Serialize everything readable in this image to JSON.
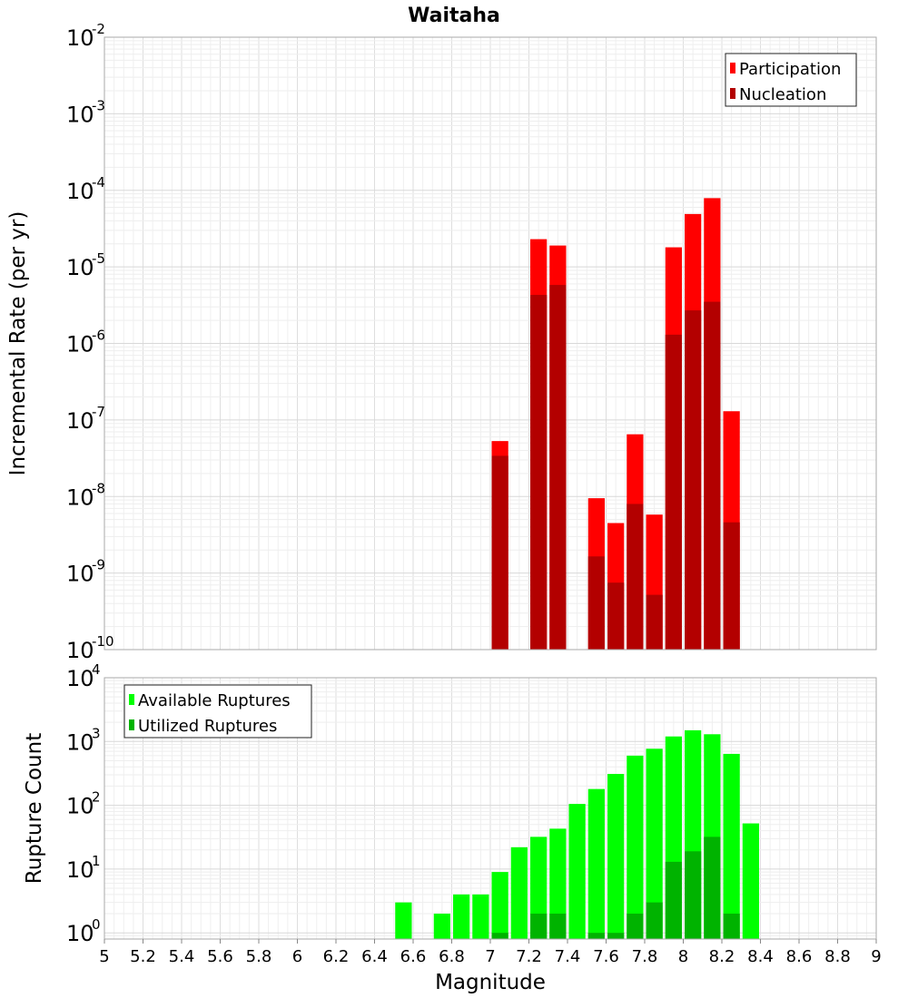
{
  "chart_data": [
    {
      "type": "bar",
      "title": "Waitaha",
      "ylabel": "Incremental Rate (per yr)",
      "xlabel": "",
      "yscale": "log",
      "ylim": [
        1e-10,
        0.01
      ],
      "xlim": [
        5,
        9
      ],
      "bin_width": 0.1,
      "y_ticks": [
        {
          "base": "10",
          "exp": "-10"
        },
        {
          "base": "10",
          "exp": "-9"
        },
        {
          "base": "10",
          "exp": "-8"
        },
        {
          "base": "10",
          "exp": "-7"
        },
        {
          "base": "10",
          "exp": "-6"
        },
        {
          "base": "10",
          "exp": "-5"
        },
        {
          "base": "10",
          "exp": "-4"
        },
        {
          "base": "10",
          "exp": "-3"
        },
        {
          "base": "10",
          "exp": "-2"
        }
      ],
      "legend": {
        "position": "top-right"
      },
      "grid": true,
      "series": [
        {
          "name": "Participation",
          "color": "#ff0000",
          "points": [
            {
              "x": 7.05,
              "y": 5.3e-08
            },
            {
              "x": 7.25,
              "y": 2.3e-05
            },
            {
              "x": 7.35,
              "y": 1.9e-05
            },
            {
              "x": 7.55,
              "y": 9.5e-09
            },
            {
              "x": 7.65,
              "y": 4.5e-09
            },
            {
              "x": 7.75,
              "y": 6.5e-08
            },
            {
              "x": 7.85,
              "y": 5.8e-09
            },
            {
              "x": 7.95,
              "y": 1.8e-05
            },
            {
              "x": 8.05,
              "y": 4.9e-05
            },
            {
              "x": 8.15,
              "y": 7.9e-05
            },
            {
              "x": 8.25,
              "y": 1.3e-07
            }
          ]
        },
        {
          "name": "Nucleation",
          "color": "#b30000",
          "points": [
            {
              "x": 7.05,
              "y": 3.4e-08
            },
            {
              "x": 7.25,
              "y": 4.3e-06
            },
            {
              "x": 7.35,
              "y": 5.8e-06
            },
            {
              "x": 7.55,
              "y": 1.65e-09
            },
            {
              "x": 7.65,
              "y": 7.5e-10
            },
            {
              "x": 7.75,
              "y": 8e-09
            },
            {
              "x": 7.85,
              "y": 5.2e-10
            },
            {
              "x": 7.95,
              "y": 1.3e-06
            },
            {
              "x": 8.05,
              "y": 2.7e-06
            },
            {
              "x": 8.15,
              "y": 3.5e-06
            },
            {
              "x": 8.25,
              "y": 4.6e-09
            }
          ]
        }
      ]
    },
    {
      "type": "bar",
      "title": "",
      "ylabel": "Rupture Count",
      "xlabel": "Magnitude",
      "yscale": "log",
      "ylim": [
        0.8,
        10000
      ],
      "xlim": [
        5,
        9
      ],
      "bin_width": 0.1,
      "y_ticks": [
        {
          "base": "10",
          "exp": "0",
          "value": 1
        },
        {
          "base": "10",
          "exp": "1",
          "value": 10
        },
        {
          "base": "10",
          "exp": "2",
          "value": 100
        },
        {
          "base": "10",
          "exp": "3",
          "value": 1000
        },
        {
          "base": "10",
          "exp": "4",
          "value": 10000
        }
      ],
      "x_tick_labels": [
        "5",
        "5.2",
        "5.4",
        "5.6",
        "5.8",
        "6",
        "6.2",
        "6.4",
        "6.6",
        "6.8",
        "7",
        "7.2",
        "7.4",
        "7.6",
        "7.8",
        "8",
        "8.2",
        "8.4",
        "8.6",
        "8.8",
        "9"
      ],
      "legend": {
        "position": "top-left"
      },
      "grid": true,
      "series": [
        {
          "name": "Available Ruptures",
          "color": "#00ff00",
          "points": [
            {
              "x": 6.55,
              "y": 3
            },
            {
              "x": 6.75,
              "y": 2
            },
            {
              "x": 6.85,
              "y": 4
            },
            {
              "x": 6.95,
              "y": 4
            },
            {
              "x": 7.05,
              "y": 9
            },
            {
              "x": 7.15,
              "y": 22
            },
            {
              "x": 7.25,
              "y": 32
            },
            {
              "x": 7.35,
              "y": 43
            },
            {
              "x": 7.45,
              "y": 105
            },
            {
              "x": 7.55,
              "y": 180
            },
            {
              "x": 7.65,
              "y": 310
            },
            {
              "x": 7.75,
              "y": 600
            },
            {
              "x": 7.85,
              "y": 770
            },
            {
              "x": 7.95,
              "y": 1200
            },
            {
              "x": 8.05,
              "y": 1500
            },
            {
              "x": 8.15,
              "y": 1300
            },
            {
              "x": 8.25,
              "y": 640
            },
            {
              "x": 8.35,
              "y": 52
            }
          ]
        },
        {
          "name": "Utilized Ruptures",
          "color": "#00b300",
          "points": [
            {
              "x": 7.05,
              "y": 1
            },
            {
              "x": 7.25,
              "y": 2
            },
            {
              "x": 7.35,
              "y": 2
            },
            {
              "x": 7.55,
              "y": 1
            },
            {
              "x": 7.65,
              "y": 1
            },
            {
              "x": 7.75,
              "y": 2
            },
            {
              "x": 7.85,
              "y": 3
            },
            {
              "x": 7.95,
              "y": 13
            },
            {
              "x": 8.05,
              "y": 19
            },
            {
              "x": 8.15,
              "y": 32
            },
            {
              "x": 8.25,
              "y": 2
            }
          ]
        }
      ]
    }
  ]
}
